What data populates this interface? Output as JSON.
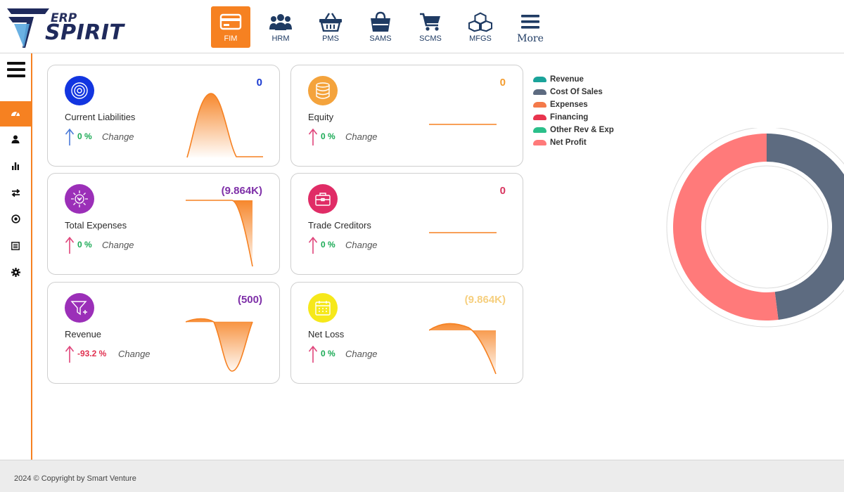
{
  "brand": {
    "erp": "ERP",
    "name": "SPIRIT"
  },
  "modules": [
    {
      "label": "FIM",
      "icon": "credit-card-icon",
      "active": true
    },
    {
      "label": "HRM",
      "icon": "users-icon"
    },
    {
      "label": "PMS",
      "icon": "basket-icon"
    },
    {
      "label": "SAMS",
      "icon": "shopping-bag-icon"
    },
    {
      "label": "SCMS",
      "icon": "cart-icon"
    },
    {
      "label": "MFGS",
      "icon": "cubes-icon"
    },
    {
      "label": "More",
      "icon": "menu-icon"
    }
  ],
  "sidebar": {
    "items": [
      {
        "icon": "dashboard-icon",
        "active": true
      },
      {
        "icon": "user-icon"
      },
      {
        "icon": "bar-chart-icon"
      },
      {
        "icon": "transfer-icon"
      },
      {
        "icon": "target-icon"
      },
      {
        "icon": "list-icon"
      },
      {
        "icon": "gear-icon"
      }
    ]
  },
  "cards": [
    {
      "title": "Current Liabilities",
      "value": "0",
      "pct": "0 %",
      "change": "Change",
      "value_color": "#1a3ad1",
      "icon_bg": "#1235e0",
      "icon": "target-icon",
      "arrow_color": "#4a7ad8",
      "pct_color": "#1aaa55"
    },
    {
      "title": "Equity",
      "value": "0",
      "pct": "0 %",
      "change": "Change",
      "value_color": "#f39c2f",
      "icon_bg": "#f4a33c",
      "icon": "database-icon",
      "arrow_color": "#e0457b",
      "pct_color": "#1aaa55"
    },
    {
      "title": "Total Expenses",
      "value": "(9.864K)",
      "pct": "0 %",
      "change": "Change",
      "value_color": "#7e2fa8",
      "icon_bg": "#9b2fb8",
      "icon": "gear-money-icon",
      "arrow_color": "#e0457b",
      "pct_color": "#1aaa55"
    },
    {
      "title": "Trade Creditors",
      "value": "0",
      "pct": "0 %",
      "change": "Change",
      "value_color": "#d8345f",
      "icon_bg": "#e02c66",
      "icon": "toolbox-icon",
      "arrow_color": "#e0457b",
      "pct_color": "#1aaa55"
    },
    {
      "title": "Revenue",
      "value": "(500)",
      "pct": "-93.2 %",
      "change": "Change",
      "value_color": "#7e2fa8",
      "icon_bg": "#9b2fb8",
      "icon": "funnel-icon",
      "arrow_color": "#e0457b",
      "pct_color": "#e0304f"
    },
    {
      "title": "Net Loss",
      "value": "(9.864K)",
      "pct": "0 %",
      "change": "Change",
      "value_color": "#f6cf7e",
      "icon_bg": "#f6e81a",
      "icon": "calendar-icon",
      "arrow_color": "#e0457b",
      "pct_color": "#1aaa55"
    }
  ],
  "legend": [
    {
      "label": "Revenue",
      "color": "#1aa39a"
    },
    {
      "label": "Cost Of Sales",
      "color": "#5d6b80"
    },
    {
      "label": "Expenses",
      "color": "#f47a4a"
    },
    {
      "label": "Financing",
      "color": "#e8344e"
    },
    {
      "label": "Other Rev & Exp",
      "color": "#2bbf8a"
    },
    {
      "label": "Net Profit",
      "color": "#ff7a7a"
    }
  ],
  "chart_data": {
    "type": "pie",
    "categories": [
      "Revenue",
      "Cost Of Sales",
      "Expenses",
      "Financing",
      "Other Rev & Exp",
      "Net Profit"
    ],
    "values": [
      0,
      0.48,
      0,
      0,
      0,
      0.52
    ],
    "legend_position": "left",
    "colors": [
      "#1aa39a",
      "#5d6b80",
      "#f47a4a",
      "#e8344e",
      "#2bbf8a",
      "#ff7a7a"
    ]
  },
  "footer": {
    "text": "2024 © Copyright by Smart Venture"
  }
}
